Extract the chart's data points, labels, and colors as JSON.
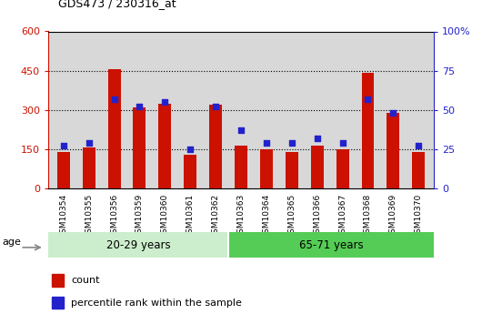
{
  "title": "GDS473 / 230316_at",
  "samples": [
    "GSM10354",
    "GSM10355",
    "GSM10356",
    "GSM10359",
    "GSM10360",
    "GSM10361",
    "GSM10362",
    "GSM10363",
    "GSM10364",
    "GSM10365",
    "GSM10366",
    "GSM10367",
    "GSM10368",
    "GSM10369",
    "GSM10370"
  ],
  "counts": [
    140,
    155,
    455,
    310,
    325,
    130,
    320,
    165,
    150,
    140,
    165,
    148,
    440,
    290,
    140
  ],
  "percentiles": [
    27,
    29,
    57,
    52,
    55,
    25,
    52,
    37,
    29,
    29,
    32,
    29,
    57,
    48,
    27
  ],
  "group1_label": "20-29 years",
  "group2_label": "65-71 years",
  "group1_count": 7,
  "group2_count": 8,
  "bar_color": "#cc1100",
  "dot_color": "#2222cc",
  "group1_bg": "#cceecc",
  "group2_bg": "#55cc55",
  "age_label": "age",
  "left_ylabel": "count",
  "right_ylabel": "percentile rank within the sample",
  "ylim_left": [
    0,
    600
  ],
  "ylim_right": [
    0,
    100
  ],
  "left_yticks": [
    0,
    150,
    300,
    450,
    600
  ],
  "right_yticks": [
    0,
    25,
    50,
    75,
    100
  ],
  "right_yticklabels": [
    "0",
    "25",
    "50",
    "75",
    "100%"
  ],
  "left_yticklabels": [
    "0",
    "150",
    "300",
    "450",
    "600"
  ],
  "plot_bg": "#d8d8d8",
  "fig_bg": "#ffffff"
}
